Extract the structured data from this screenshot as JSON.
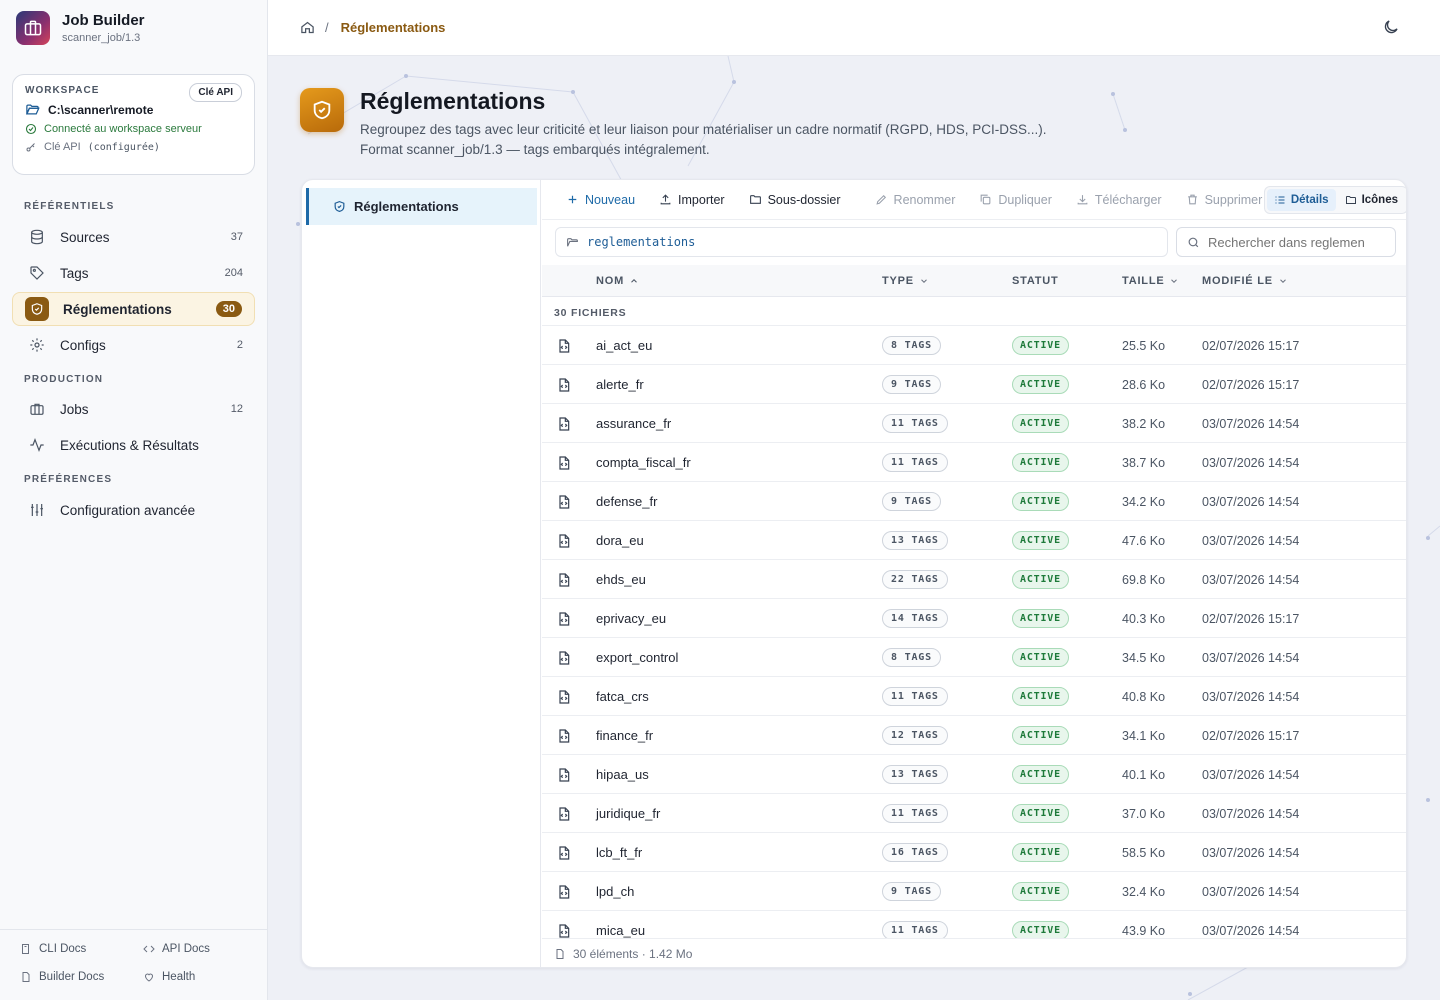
{
  "app": {
    "title": "Job Builder",
    "version": "scanner_job/1.3"
  },
  "workspace": {
    "label": "Workspace",
    "api_key_button": "Clé API",
    "path": "C:\\scanner\\remote",
    "status": "Connecté au workspace serveur",
    "api_label": "Clé API",
    "api_state": "(configurée)"
  },
  "nav": {
    "section_ref": "Référentiels",
    "section_prod": "Production",
    "section_pref": "Préférences",
    "items": [
      {
        "label": "Sources",
        "count": "37"
      },
      {
        "label": "Tags",
        "count": "204"
      },
      {
        "label": "Réglementations",
        "count": "30"
      },
      {
        "label": "Configs",
        "count": "2"
      },
      {
        "label": "Jobs",
        "count": "12"
      },
      {
        "label": "Exécutions & Résultats",
        "count": ""
      },
      {
        "label": "Configuration avancée",
        "count": ""
      }
    ]
  },
  "footer_links": {
    "cli": "CLI Docs",
    "api": "API Docs",
    "builder": "Builder Docs",
    "health": "Health"
  },
  "breadcrumb": {
    "sep": "/",
    "current": "Réglementations"
  },
  "page": {
    "title": "Réglementations",
    "desc_line1": "Regroupez des tags avec leur criticité et leur liaison pour matérialiser un cadre normatif (RGPD, HDS, PCI-DSS...).",
    "desc_line2": "Format scanner_job/1.3 — tags embarqués intégralement."
  },
  "tree": {
    "root": "Réglementations"
  },
  "toolbar": {
    "new": "Nouveau",
    "import": "Importer",
    "subfolder": "Sous-dossier",
    "rename": "Renommer",
    "duplicate": "Dupliquer",
    "download": "Télécharger",
    "delete": "Supprimer",
    "view_details": "Détails",
    "view_icons": "Icônes"
  },
  "path": "reglementations",
  "search": {
    "value": "Rechercher dans reglemen"
  },
  "columns": {
    "name": "Nom",
    "type": "Type",
    "status": "Statut",
    "size": "Taille",
    "modified": "Modifié le"
  },
  "group_label": "30 fichiers",
  "files": [
    {
      "name": "ai_act_eu",
      "tags": "8 TAGS",
      "status": "ACTIVE",
      "size": "25.5 Ko",
      "modified": "02/07/2026 15:17"
    },
    {
      "name": "alerte_fr",
      "tags": "9 TAGS",
      "status": "ACTIVE",
      "size": "28.6 Ko",
      "modified": "02/07/2026 15:17"
    },
    {
      "name": "assurance_fr",
      "tags": "11 TAGS",
      "status": "ACTIVE",
      "size": "38.2 Ko",
      "modified": "03/07/2026 14:54"
    },
    {
      "name": "compta_fiscal_fr",
      "tags": "11 TAGS",
      "status": "ACTIVE",
      "size": "38.7 Ko",
      "modified": "03/07/2026 14:54"
    },
    {
      "name": "defense_fr",
      "tags": "9 TAGS",
      "status": "ACTIVE",
      "size": "34.2 Ko",
      "modified": "03/07/2026 14:54"
    },
    {
      "name": "dora_eu",
      "tags": "13 TAGS",
      "status": "ACTIVE",
      "size": "47.6 Ko",
      "modified": "03/07/2026 14:54"
    },
    {
      "name": "ehds_eu",
      "tags": "22 TAGS",
      "status": "ACTIVE",
      "size": "69.8 Ko",
      "modified": "03/07/2026 14:54"
    },
    {
      "name": "eprivacy_eu",
      "tags": "14 TAGS",
      "status": "ACTIVE",
      "size": "40.3 Ko",
      "modified": "02/07/2026 15:17"
    },
    {
      "name": "export_control",
      "tags": "8 TAGS",
      "status": "ACTIVE",
      "size": "34.5 Ko",
      "modified": "03/07/2026 14:54"
    },
    {
      "name": "fatca_crs",
      "tags": "11 TAGS",
      "status": "ACTIVE",
      "size": "40.8 Ko",
      "modified": "03/07/2026 14:54"
    },
    {
      "name": "finance_fr",
      "tags": "12 TAGS",
      "status": "ACTIVE",
      "size": "34.1 Ko",
      "modified": "02/07/2026 15:17"
    },
    {
      "name": "hipaa_us",
      "tags": "13 TAGS",
      "status": "ACTIVE",
      "size": "40.1 Ko",
      "modified": "03/07/2026 14:54"
    },
    {
      "name": "juridique_fr",
      "tags": "11 TAGS",
      "status": "ACTIVE",
      "size": "37.0 Ko",
      "modified": "03/07/2026 14:54"
    },
    {
      "name": "lcb_ft_fr",
      "tags": "16 TAGS",
      "status": "ACTIVE",
      "size": "58.5 Ko",
      "modified": "03/07/2026 14:54"
    },
    {
      "name": "lpd_ch",
      "tags": "9 TAGS",
      "status": "ACTIVE",
      "size": "32.4 Ko",
      "modified": "03/07/2026 14:54"
    },
    {
      "name": "mica_eu",
      "tags": "11 TAGS",
      "status": "ACTIVE",
      "size": "43.9 Ko",
      "modified": "03/07/2026 14:54"
    }
  ],
  "footer_summary": "30 éléments · 1.42 Mo",
  "colors": {
    "accent": "#8a5a12",
    "link": "#1e6aa8",
    "active_green": "#1e7a3a"
  }
}
